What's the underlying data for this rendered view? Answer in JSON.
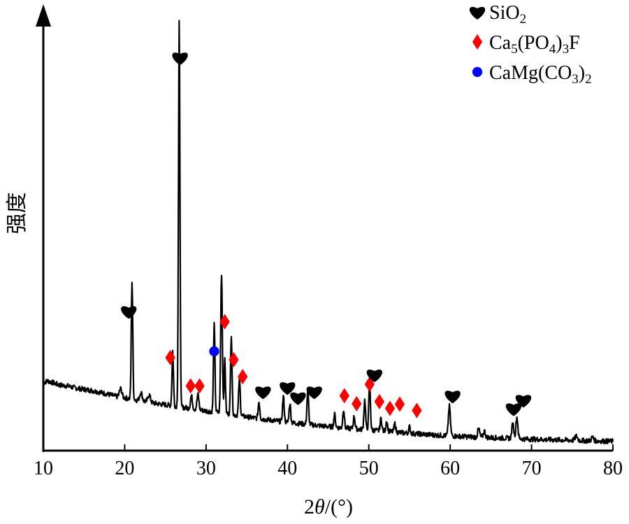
{
  "chart_data": {
    "type": "line",
    "title": "",
    "xlabel": {
      "pre": "2",
      "var": "θ",
      "post": "/(°)"
    },
    "ylabel": "强度",
    "xlim": [
      10,
      80
    ],
    "ylim": [
      0,
      1
    ],
    "x_ticks": [
      10,
      20,
      30,
      40,
      50,
      60,
      70,
      80
    ],
    "grid": false,
    "legend_position": "top-right",
    "colors": {
      "line": "#000000",
      "sio2": "#000000",
      "apatite": "#ff0000",
      "dolomite": "#0000ff"
    },
    "legend": [
      {
        "key": "sio2",
        "marker": "heart",
        "color": "#000000",
        "text": [
          {
            "t": "SiO"
          },
          {
            "t": "2",
            "sub": true
          }
        ]
      },
      {
        "key": "apatite",
        "marker": "diamond",
        "color": "#ff0000",
        "text": [
          {
            "t": "Ca"
          },
          {
            "t": "5",
            "sub": true
          },
          {
            "t": "(PO"
          },
          {
            "t": "4",
            "sub": true
          },
          {
            "t": ")"
          },
          {
            "t": "3",
            "sub": true
          },
          {
            "t": "F"
          }
        ]
      },
      {
        "key": "dolomite",
        "marker": "circle",
        "color": "#0000ff",
        "text": [
          {
            "t": "CaMg(CO"
          },
          {
            "t": "3",
            "sub": true
          },
          {
            "t": ")"
          },
          {
            "t": "2",
            "sub": true
          }
        ]
      }
    ],
    "series": [
      {
        "baseline": [
          [
            10,
            0.16
          ],
          [
            10.5,
            0.165
          ],
          [
            11,
            0.162
          ],
          [
            12,
            0.155
          ],
          [
            13,
            0.153
          ],
          [
            14,
            0.148
          ],
          [
            15,
            0.145
          ],
          [
            16,
            0.142
          ],
          [
            17,
            0.138
          ],
          [
            18,
            0.133
          ],
          [
            19,
            0.128
          ],
          [
            20,
            0.125
          ],
          [
            22,
            0.118
          ],
          [
            24,
            0.111
          ],
          [
            26,
            0.106
          ],
          [
            28,
            0.1
          ],
          [
            30,
            0.094
          ],
          [
            32,
            0.089
          ],
          [
            34,
            0.083
          ],
          [
            36,
            0.077
          ],
          [
            38,
            0.072
          ],
          [
            40,
            0.067
          ],
          [
            42,
            0.063
          ],
          [
            44,
            0.059
          ],
          [
            46,
            0.055
          ],
          [
            48,
            0.052
          ],
          [
            50,
            0.049
          ],
          [
            52,
            0.046
          ],
          [
            55,
            0.041
          ],
          [
            58,
            0.037
          ],
          [
            62,
            0.033
          ],
          [
            66,
            0.03
          ],
          [
            70,
            0.027
          ],
          [
            74,
            0.025
          ],
          [
            78,
            0.023
          ],
          [
            80,
            0.022
          ]
        ],
        "peaks": [
          {
            "x": 19.5,
            "h": 0.02,
            "w": 0.15
          },
          {
            "x": 20.9,
            "h": 0.278,
            "w": 0.09
          },
          {
            "x": 22.0,
            "h": 0.02,
            "w": 0.15
          },
          {
            "x": 23.0,
            "h": 0.018,
            "w": 0.15
          },
          {
            "x": 25.9,
            "h": 0.13,
            "w": 0.09
          },
          {
            "x": 26.7,
            "h": 0.908,
            "w": 0.09
          },
          {
            "x": 28.2,
            "h": 0.03,
            "w": 0.12
          },
          {
            "x": 29.0,
            "h": 0.035,
            "w": 0.12
          },
          {
            "x": 31.0,
            "h": 0.206,
            "w": 0.09
          },
          {
            "x": 31.9,
            "h": 0.33,
            "w": 0.1
          },
          {
            "x": 32.3,
            "h": 0.13,
            "w": 0.08
          },
          {
            "x": 33.1,
            "h": 0.19,
            "w": 0.09
          },
          {
            "x": 34.1,
            "h": 0.085,
            "w": 0.1
          },
          {
            "x": 36.5,
            "h": 0.04,
            "w": 0.1
          },
          {
            "x": 39.5,
            "h": 0.06,
            "w": 0.1
          },
          {
            "x": 40.3,
            "h": 0.045,
            "w": 0.1
          },
          {
            "x": 42.5,
            "h": 0.08,
            "w": 0.1
          },
          {
            "x": 45.8,
            "h": 0.03,
            "w": 0.1
          },
          {
            "x": 46.9,
            "h": 0.045,
            "w": 0.1
          },
          {
            "x": 48.2,
            "h": 0.03,
            "w": 0.1
          },
          {
            "x": 49.5,
            "h": 0.07,
            "w": 0.1
          },
          {
            "x": 50.1,
            "h": 0.11,
            "w": 0.1
          },
          {
            "x": 51.5,
            "h": 0.03,
            "w": 0.1
          },
          {
            "x": 52.2,
            "h": 0.025,
            "w": 0.1
          },
          {
            "x": 53.2,
            "h": 0.02,
            "w": 0.1
          },
          {
            "x": 55.0,
            "h": 0.015,
            "w": 0.1
          },
          {
            "x": 59.9,
            "h": 0.07,
            "w": 0.12
          },
          {
            "x": 63.5,
            "h": 0.02,
            "w": 0.12
          },
          {
            "x": 64.2,
            "h": 0.015,
            "w": 0.12
          },
          {
            "x": 67.7,
            "h": 0.035,
            "w": 0.12
          },
          {
            "x": 68.2,
            "h": 0.05,
            "w": 0.12
          },
          {
            "x": 75.5,
            "h": 0.01,
            "w": 0.15
          },
          {
            "x": 77.5,
            "h": 0.008,
            "w": 0.15
          }
        ]
      }
    ],
    "markers": [
      {
        "x": 20.5,
        "y": 0.33,
        "phase": "sio2"
      },
      {
        "x": 26.8,
        "y": 0.93,
        "phase": "sio2"
      },
      {
        "x": 25.6,
        "y": 0.22,
        "phase": "apatite"
      },
      {
        "x": 31.0,
        "y": 0.235,
        "phase": "dolomite"
      },
      {
        "x": 32.3,
        "y": 0.305,
        "phase": "apatite"
      },
      {
        "x": 33.4,
        "y": 0.215,
        "phase": "apatite"
      },
      {
        "x": 28.1,
        "y": 0.153,
        "phase": "apatite"
      },
      {
        "x": 29.2,
        "y": 0.153,
        "phase": "apatite"
      },
      {
        "x": 34.5,
        "y": 0.175,
        "phase": "apatite"
      },
      {
        "x": 37.0,
        "y": 0.14,
        "phase": "sio2"
      },
      {
        "x": 40.0,
        "y": 0.15,
        "phase": "sio2"
      },
      {
        "x": 41.3,
        "y": 0.126,
        "phase": "sio2"
      },
      {
        "x": 43.3,
        "y": 0.14,
        "phase": "sio2"
      },
      {
        "x": 47.0,
        "y": 0.13,
        "phase": "apatite"
      },
      {
        "x": 48.5,
        "y": 0.111,
        "phase": "apatite"
      },
      {
        "x": 50.1,
        "y": 0.157,
        "phase": "apatite"
      },
      {
        "x": 50.7,
        "y": 0.18,
        "phase": "sio2"
      },
      {
        "x": 51.3,
        "y": 0.116,
        "phase": "apatite"
      },
      {
        "x": 52.6,
        "y": 0.1,
        "phase": "apatite"
      },
      {
        "x": 53.8,
        "y": 0.11,
        "phase": "apatite"
      },
      {
        "x": 55.9,
        "y": 0.095,
        "phase": "apatite"
      },
      {
        "x": 60.3,
        "y": 0.13,
        "phase": "sio2"
      },
      {
        "x": 67.8,
        "y": 0.1,
        "phase": "sio2"
      },
      {
        "x": 69.0,
        "y": 0.12,
        "phase": "sio2"
      }
    ]
  }
}
